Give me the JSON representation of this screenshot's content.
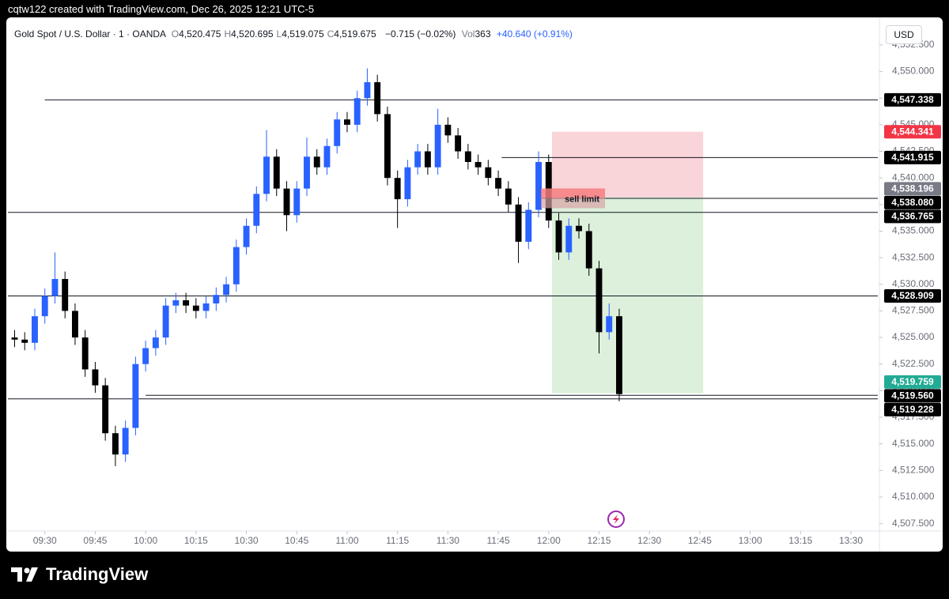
{
  "header": {
    "caption": "cqtw122 created with TradingView.com, Dec 26, 2025 12:21 UTC-5",
    "symbol": "Gold Spot / U.S. Dollar · 1 · OANDA",
    "ohlc": [
      {
        "key": "O",
        "value": "4,520.475"
      },
      {
        "key": "H",
        "value": "4,520.695"
      },
      {
        "key": "L",
        "value": "4,519.075"
      },
      {
        "key": "C",
        "value": "4,519.675"
      }
    ],
    "change": "−0.715 (−0.02%)",
    "volume_key": "Vol",
    "volume": "363",
    "indicator": "+40.640 (+0.91%)",
    "currency": "USD"
  },
  "chart_data": {
    "type": "candlestick",
    "x": [
      "09:21",
      "09:24",
      "09:27",
      "09:30",
      "09:33",
      "09:36",
      "09:39",
      "09:42",
      "09:45",
      "09:48",
      "09:51",
      "09:54",
      "09:57",
      "10:00",
      "10:03",
      "10:06",
      "10:09",
      "10:12",
      "10:15",
      "10:18",
      "10:21",
      "10:24",
      "10:27",
      "10:30",
      "10:33",
      "10:36",
      "10:39",
      "10:42",
      "10:45",
      "10:48",
      "10:51",
      "10:54",
      "10:57",
      "11:00",
      "11:03",
      "11:06",
      "11:09",
      "11:12",
      "11:15",
      "11:18",
      "11:21",
      "11:24",
      "11:27",
      "11:30",
      "11:33",
      "11:36",
      "11:39",
      "11:42",
      "11:45",
      "11:48",
      "11:51",
      "11:54",
      "11:57",
      "12:00",
      "12:03",
      "12:06",
      "12:09",
      "12:12",
      "12:15",
      "12:18",
      "12:21"
    ],
    "open": [
      4525.0,
      4524.8,
      4524.5,
      4527.0,
      4528.9,
      4530.5,
      4527.5,
      4525.0,
      4522.0,
      4520.5,
      4516.0,
      4514.0,
      4516.5,
      4522.5,
      4524.0,
      4525.0,
      4528.0,
      4528.5,
      4528.0,
      4527.5,
      4528.2,
      4529.0,
      4530.0,
      4533.5,
      4535.5,
      4538.5,
      4542.0,
      4539.0,
      4536.5,
      4539.0,
      4542.0,
      4541.0,
      4543.0,
      4545.5,
      4545.0,
      4547.5,
      4549.0,
      4546.0,
      4540.0,
      4538.0,
      4541.0,
      4542.5,
      4541.0,
      4545.0,
      4544.0,
      4542.5,
      4541.5,
      4541.0,
      4540.0,
      4539.0,
      4537.5,
      4534.0,
      4537.0,
      4541.5,
      4536.0,
      4533.0,
      4535.5,
      4535.0,
      4531.5,
      4525.5,
      4527.0
    ],
    "high": [
      4525.7,
      4525.5,
      4527.7,
      4529.6,
      4533.0,
      4531.2,
      4528.2,
      4525.7,
      4522.7,
      4521.2,
      4516.7,
      4517.2,
      4523.2,
      4524.7,
      4525.7,
      4528.7,
      4529.2,
      4529.2,
      4528.7,
      4528.9,
      4529.7,
      4530.7,
      4534.2,
      4536.2,
      4539.2,
      4544.5,
      4542.7,
      4539.7,
      4539.7,
      4543.8,
      4542.7,
      4543.7,
      4546.2,
      4546.2,
      4548.2,
      4550.3,
      4549.7,
      4546.7,
      4540.7,
      4541.7,
      4543.2,
      4543.2,
      4546.5,
      4545.7,
      4544.7,
      4543.2,
      4542.2,
      4541.7,
      4540.7,
      4539.7,
      4538.2,
      4537.7,
      4542.5,
      4542.2,
      4536.7,
      4536.2,
      4536.2,
      4535.7,
      4532.2,
      4528.2,
      4527.7
    ],
    "low": [
      4524.1,
      4523.8,
      4523.8,
      4526.3,
      4528.2,
      4526.8,
      4524.3,
      4521.3,
      4519.8,
      4515.3,
      4512.9,
      4513.3,
      4515.8,
      4521.8,
      4523.3,
      4524.3,
      4527.3,
      4527.3,
      4526.8,
      4526.8,
      4527.5,
      4528.3,
      4529.3,
      4532.8,
      4534.8,
      4537.8,
      4538.3,
      4535.0,
      4535.8,
      4538.3,
      4540.3,
      4540.3,
      4542.3,
      4544.3,
      4544.3,
      4546.8,
      4545.3,
      4539.3,
      4535.3,
      4537.3,
      4540.3,
      4540.3,
      4540.3,
      4543.3,
      4541.8,
      4540.8,
      4540.3,
      4539.3,
      4538.3,
      4536.8,
      4532.0,
      4533.3,
      4536.3,
      4535.3,
      4532.3,
      4532.3,
      4534.3,
      4530.8,
      4523.5,
      4524.8,
      4519.0
    ],
    "close": [
      4524.8,
      4524.5,
      4527.0,
      4528.9,
      4530.5,
      4527.5,
      4525.0,
      4522.0,
      4520.5,
      4516.0,
      4514.0,
      4516.5,
      4522.5,
      4524.0,
      4525.0,
      4528.0,
      4528.5,
      4528.0,
      4527.5,
      4528.2,
      4529.0,
      4530.0,
      4533.5,
      4535.5,
      4538.5,
      4542.0,
      4539.0,
      4536.5,
      4539.0,
      4542.0,
      4541.0,
      4543.0,
      4545.5,
      4545.0,
      4547.5,
      4549.0,
      4546.0,
      4540.0,
      4538.0,
      4541.0,
      4542.5,
      4541.0,
      4545.0,
      4544.0,
      4542.5,
      4541.5,
      4541.0,
      4540.0,
      4539.0,
      4537.5,
      4534.0,
      4537.0,
      4541.5,
      4536.0,
      4533.0,
      4535.5,
      4535.0,
      4531.5,
      4525.5,
      4527.0,
      4519.675
    ],
    "up_color": "#2962ff",
    "down_color": "#000000",
    "xlim": [
      "09:19",
      "13:38"
    ],
    "xticks": [
      "09:30",
      "09:45",
      "10:00",
      "10:15",
      "10:30",
      "10:45",
      "11:00",
      "11:15",
      "11:30",
      "11:45",
      "12:00",
      "12:15",
      "12:30",
      "12:45",
      "13:00",
      "13:15",
      "13:30"
    ],
    "ylim": [
      4507.1,
      4554.5
    ],
    "yticks": [
      {
        "value": 4507.5,
        "label": "4,507.500"
      },
      {
        "value": 4510,
        "label": "4,510.000"
      },
      {
        "value": 4512.5,
        "label": "4,512.500"
      },
      {
        "value": 4515,
        "label": "4,515.000"
      },
      {
        "value": 4517.5,
        "label": "4,517.500"
      },
      {
        "value": 4520,
        "label": "4,520.000"
      },
      {
        "value": 4522.5,
        "label": "4,522.500"
      },
      {
        "value": 4525,
        "label": "4,525.000"
      },
      {
        "value": 4527.5,
        "label": "4,527.500"
      },
      {
        "value": 4530,
        "label": "4,530.000"
      },
      {
        "value": 4532.5,
        "label": "4,532.500"
      },
      {
        "value": 4535,
        "label": "4,535.000"
      },
      {
        "value": 4537.5,
        "label": "4,537.500"
      },
      {
        "value": 4540,
        "label": "4,540.000"
      },
      {
        "value": 4542.5,
        "label": "4,542.500"
      },
      {
        "value": 4545,
        "label": "4,545.000"
      },
      {
        "value": 4547.5,
        "label": "4,547.500"
      },
      {
        "value": 4550,
        "label": "4,550.000"
      },
      {
        "value": 4552.5,
        "label": "4,552.500"
      }
    ],
    "levels": [
      {
        "value": 4547.338,
        "label": "4,547.338",
        "color": "#000000",
        "from": "09:30"
      },
      {
        "value": 4544.341,
        "label": "4,544.341",
        "color": "#f23645"
      },
      {
        "value": 4541.915,
        "label": "4,541.915",
        "color": "#000000",
        "from": "11:46"
      },
      {
        "value": 4538.196,
        "label": "4,538.196",
        "color": "#787b86"
      },
      {
        "value": 4538.08,
        "label": "4,538.080",
        "color": "#000000",
        "from": "11:58"
      },
      {
        "value": 4536.765,
        "label": "4,536.765",
        "color": "#000000",
        "from": "09:19"
      },
      {
        "value": 4528.909,
        "label": "4,528.909",
        "color": "#000000",
        "from": "09:19"
      },
      {
        "value": 4519.759,
        "label": "4,519.759",
        "color": "#22ab94"
      },
      {
        "value": 4519.56,
        "label": "4,519.560",
        "color": "#000000",
        "from": "10:00"
      },
      {
        "value": 4519.228,
        "label": "4,519.228",
        "color": "#000000",
        "from": "09:19"
      }
    ],
    "position": {
      "from": "12:01",
      "to": "12:46",
      "stop": 4544.341,
      "entry": 4538.196,
      "target": 4519.759,
      "stop_color": "#f7c9ce",
      "target_color": "#d8eed8"
    },
    "annotation": "sell limit"
  },
  "footer": {
    "brand": "TradingView"
  }
}
